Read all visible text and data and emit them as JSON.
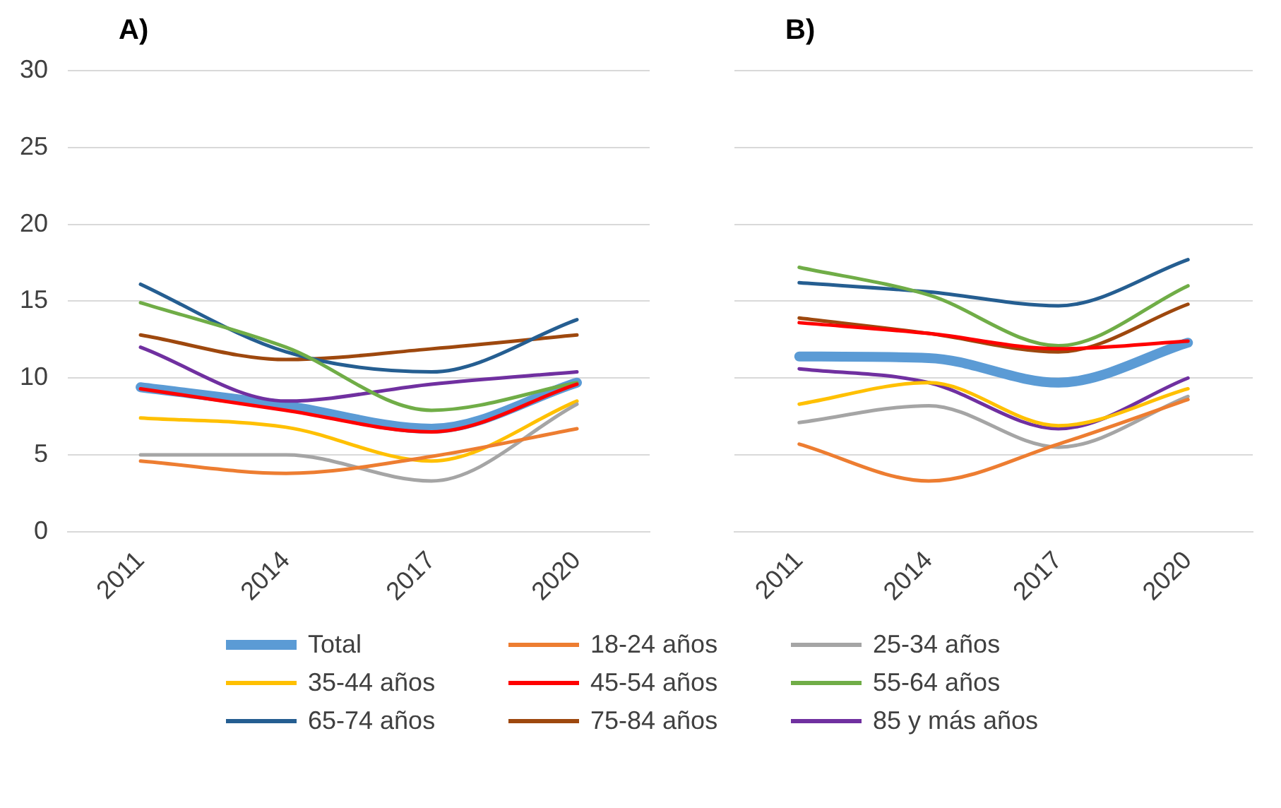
{
  "chart_data": [
    {
      "type": "line",
      "title": "A)",
      "categories": [
        "2011",
        "2014",
        "2017",
        "2020"
      ],
      "ylim": [
        0,
        30
      ],
      "yticks": [
        0,
        5,
        10,
        15,
        20,
        25,
        30
      ],
      "grid": "y",
      "legend": "bottom",
      "marker": "none",
      "series": [
        {
          "name": "Total",
          "color": "#5b9bd5",
          "values": [
            9.4,
            8.2,
            6.7,
            9.7
          ]
        },
        {
          "name": "18-24 años",
          "color": "#ed7d31",
          "values": [
            4.6,
            3.8,
            4.9,
            6.7
          ]
        },
        {
          "name": "25-34 años",
          "color": "#a5a5a5",
          "values": [
            5.0,
            5.0,
            3.3,
            8.3
          ]
        },
        {
          "name": "35-44 años",
          "color": "#ffc000",
          "values": [
            7.4,
            6.8,
            4.6,
            8.5
          ]
        },
        {
          "name": "45-54 años",
          "color": "#ff0000",
          "values": [
            9.3,
            7.9,
            6.5,
            9.6
          ]
        },
        {
          "name": "55-64 años",
          "color": "#70ad47",
          "values": [
            14.9,
            12.0,
            7.9,
            9.7
          ]
        },
        {
          "name": "65-74 años",
          "color": "#255e91",
          "values": [
            16.1,
            11.7,
            10.4,
            13.8
          ]
        },
        {
          "name": "75-84 años",
          "color": "#9e480e",
          "values": [
            12.8,
            11.2,
            11.9,
            12.8
          ]
        },
        {
          "name": "85 y más años",
          "color": "#7030a0",
          "values": [
            12.0,
            8.5,
            9.6,
            10.4
          ]
        }
      ]
    },
    {
      "type": "line",
      "title": "B)",
      "categories": [
        "2011",
        "2014",
        "2017",
        "2020"
      ],
      "ylim": [
        0,
        30
      ],
      "yticks": [
        0,
        5,
        10,
        15,
        20,
        25,
        30
      ],
      "grid": "y",
      "legend": "bottom",
      "marker": "none",
      "tick_labels": "x",
      "series": [
        {
          "name": "Total",
          "color": "#5b9bd5",
          "values": [
            11.4,
            11.3,
            9.7,
            12.3
          ]
        },
        {
          "name": "18-24 años",
          "color": "#ed7d31",
          "values": [
            5.7,
            3.3,
            5.7,
            8.6
          ]
        },
        {
          "name": "25-34 años",
          "color": "#a5a5a5",
          "values": [
            7.1,
            8.2,
            5.5,
            8.8
          ]
        },
        {
          "name": "35-44 años",
          "color": "#ffc000",
          "values": [
            8.3,
            9.7,
            6.9,
            9.3
          ]
        },
        {
          "name": "45-54 años",
          "color": "#ff0000",
          "values": [
            13.6,
            12.9,
            11.9,
            12.4
          ]
        },
        {
          "name": "55-64 años",
          "color": "#70ad47",
          "values": [
            17.2,
            15.4,
            12.1,
            16.0
          ]
        },
        {
          "name": "65-74 años",
          "color": "#255e91",
          "values": [
            16.2,
            15.6,
            14.7,
            17.7
          ]
        },
        {
          "name": "75-84 años",
          "color": "#9e480e",
          "values": [
            13.9,
            12.9,
            11.7,
            14.8
          ]
        },
        {
          "name": "85 y más años",
          "color": "#7030a0",
          "values": [
            10.6,
            9.7,
            6.7,
            10.0
          ]
        }
      ]
    }
  ]
}
